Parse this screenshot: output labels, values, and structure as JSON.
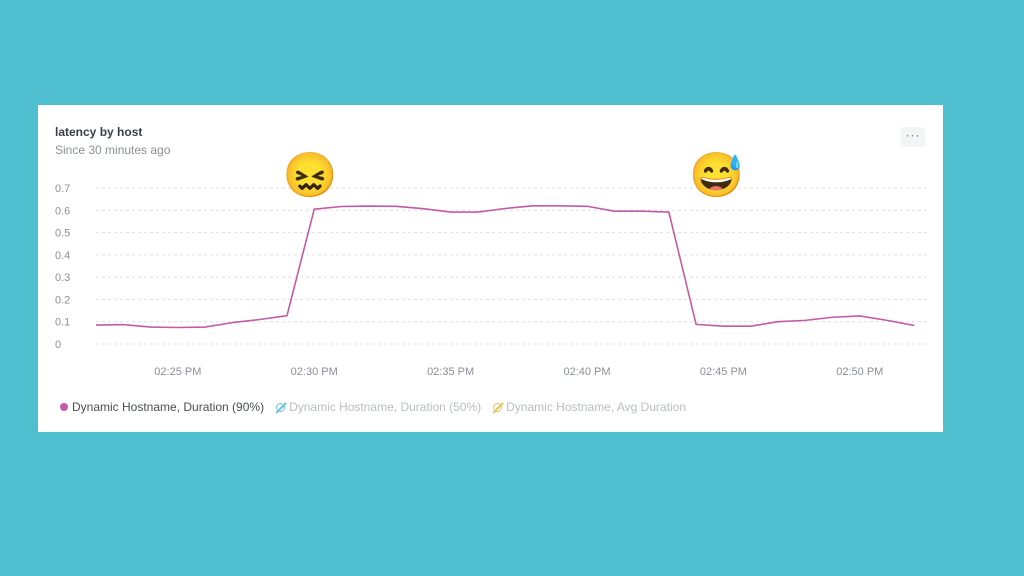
{
  "card": {
    "title": "latency by host",
    "subtitle": "Since 30 minutes ago",
    "menu_label": "···"
  },
  "chart_data": {
    "type": "line",
    "ylim": [
      0,
      0.7
    ],
    "yticks": [
      "0",
      "0.1",
      "0.2",
      "0.3",
      "0.4",
      "0.5",
      "0.6",
      "0.7"
    ],
    "xticks": [
      "02:25 PM",
      "02:30 PM",
      "02:35 PM",
      "02:40 PM",
      "02:45 PM",
      "02:50 PM"
    ],
    "xtick_minutes": [
      25,
      30,
      35,
      40,
      45,
      50
    ],
    "xlim_minutes": [
      22.0,
      52.5
    ],
    "grid": true,
    "series": [
      {
        "name": "Dynamic Hostname, Duration (90%)",
        "color": "#c45aa5",
        "active": true,
        "x_minutes": [
          22.0,
          23.0,
          24.0,
          25.0,
          26.0,
          27.0,
          28.0,
          29.0,
          30.0,
          31.0,
          32.0,
          33.0,
          34.0,
          35.0,
          36.0,
          37.0,
          38.0,
          39.0,
          40.0,
          41.0,
          42.0,
          43.0,
          44.0,
          45.0,
          46.0,
          47.0,
          48.0,
          49.0,
          50.0,
          51.0,
          52.0
        ],
        "values": [
          0.085,
          0.087,
          0.076,
          0.074,
          0.076,
          0.096,
          0.11,
          0.127,
          0.605,
          0.617,
          0.619,
          0.618,
          0.607,
          0.592,
          0.592,
          0.608,
          0.62,
          0.62,
          0.618,
          0.596,
          0.596,
          0.592,
          0.088,
          0.08,
          0.08,
          0.1,
          0.106,
          0.12,
          0.126,
          0.106,
          0.083
        ]
      },
      {
        "name": "Dynamic Hostname, Duration (50%)",
        "color": "#69c3e3",
        "active": false
      },
      {
        "name": "Dynamic Hostname, Avg Duration",
        "color": "#e6c45a",
        "active": false
      }
    ]
  },
  "annotations": [
    {
      "label": "confounded-face",
      "icon": "😖",
      "x_minute": 29.8,
      "y_value": 0.75
    },
    {
      "label": "grinning-sweat-face",
      "icon": "😅",
      "x_minute": 44.7,
      "y_value": 0.75
    }
  ]
}
